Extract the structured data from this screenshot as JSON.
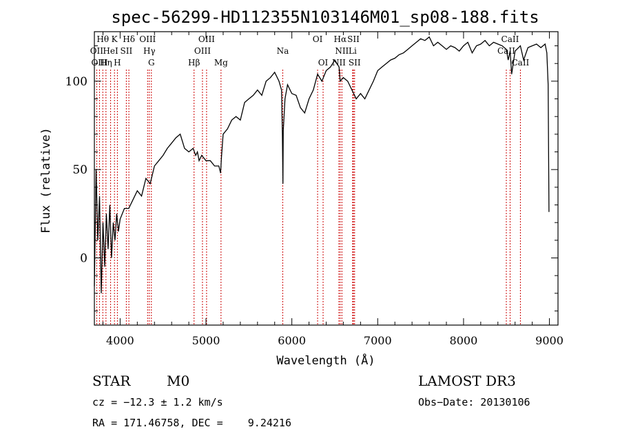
{
  "chart_data": {
    "type": "line",
    "title": "spec-56299-HD112355N103146M01_sp08-188.fits",
    "xlabel": "Wavelength (Å)",
    "ylabel": "Flux (relative)",
    "xlim": [
      3700,
      9100
    ],
    "ylim": [
      -38,
      128
    ],
    "xticks": [
      4000,
      5000,
      6000,
      7000,
      8000,
      9000
    ],
    "yticks": [
      0,
      50,
      100
    ],
    "grid": false,
    "series": [
      {
        "x": [
          3700,
          3720,
          3740,
          3760,
          3780,
          3800,
          3820,
          3840,
          3860,
          3880,
          3900,
          3920,
          3940,
          3960,
          3980,
          4000,
          4050,
          4100,
          4150,
          4200,
          4250,
          4300,
          4350,
          4400,
          4450,
          4500,
          4550,
          4600,
          4650,
          4700,
          4750,
          4800,
          4850,
          4880,
          4900,
          4920,
          4950,
          5000,
          5050,
          5100,
          5150,
          5170,
          5180,
          5200,
          5250,
          5300,
          5350,
          5400,
          5450,
          5500,
          5550,
          5600,
          5650,
          5700,
          5750,
          5800,
          5850,
          5880,
          5890,
          5896,
          5900,
          5920,
          5950,
          6000,
          6050,
          6100,
          6150,
          6200,
          6250,
          6300,
          6350,
          6400,
          6450,
          6500,
          6550,
          6563,
          6600,
          6650,
          6700,
          6750,
          6800,
          6850,
          6900,
          6950,
          7000,
          7050,
          7100,
          7150,
          7200,
          7250,
          7300,
          7350,
          7400,
          7450,
          7500,
          7550,
          7600,
          7650,
          7700,
          7750,
          7800,
          7850,
          7900,
          7950,
          8000,
          8050,
          8100,
          8150,
          8200,
          8250,
          8300,
          8350,
          8400,
          8450,
          8498,
          8520,
          8542,
          8560,
          8600,
          8662,
          8700,
          8750,
          8800,
          8850,
          8900,
          8950,
          8970,
          8985,
          8995
        ],
        "y": [
          -16,
          50,
          10,
          35,
          -20,
          20,
          -5,
          25,
          5,
          30,
          0,
          20,
          10,
          25,
          15,
          22,
          28,
          28,
          33,
          38,
          35,
          45,
          42,
          52,
          55,
          58,
          62,
          65,
          68,
          70,
          62,
          60,
          62,
          58,
          60,
          55,
          58,
          55,
          55,
          52,
          52,
          48,
          57,
          70,
          73,
          78,
          80,
          78,
          88,
          90,
          92,
          95,
          92,
          100,
          102,
          105,
          100,
          95,
          70,
          42,
          72,
          90,
          98,
          93,
          92,
          85,
          82,
          90,
          95,
          104,
          100,
          106,
          108,
          112,
          108,
          100,
          102,
          100,
          95,
          90,
          93,
          90,
          95,
          100,
          106,
          108,
          110,
          112,
          113,
          115,
          116,
          118,
          120,
          122,
          124,
          123,
          125,
          120,
          122,
          120,
          118,
          120,
          119,
          117,
          120,
          122,
          116,
          120,
          121,
          123,
          120,
          122,
          121,
          120,
          118,
          112,
          117,
          104,
          117,
          120,
          112,
          119,
          120,
          121,
          119,
          121,
          116,
          98,
          26
        ]
      }
    ],
    "lines": [
      {
        "name": "Hθ",
        "x": 3798
      },
      {
        "name": "OII",
        "x": 3727
      },
      {
        "name": "OIII",
        "x": 3760
      },
      {
        "name": "Hη",
        "x": 3835
      },
      {
        "name": "HeI",
        "x": 3889
      },
      {
        "name": "K",
        "x": 3934
      },
      {
        "name": "H",
        "x": 3968
      },
      {
        "name": "SII",
        "x": 4072
      },
      {
        "name": "Hδ",
        "x": 4102
      },
      {
        "name": "OIII",
        "x": 4320
      },
      {
        "name": "Hγ",
        "x": 4340
      },
      {
        "name": "G",
        "x": 4364
      },
      {
        "name": "Hβ",
        "x": 4861
      },
      {
        "name": "OIII",
        "x": 4959
      },
      {
        "name": "OIII",
        "x": 5007
      },
      {
        "name": "Mg",
        "x": 5175
      },
      {
        "name": "Na",
        "x": 5894
      },
      {
        "name": "OI",
        "x": 6300
      },
      {
        "name": "OI",
        "x": 6364
      },
      {
        "name": "Hα",
        "x": 6563
      },
      {
        "name": "NII",
        "x": 6548
      },
      {
        "name": "NII",
        "x": 6583
      },
      {
        "name": "SII",
        "x": 6717
      },
      {
        "name": "Li",
        "x": 6708
      },
      {
        "name": "SII",
        "x": 6731
      },
      {
        "name": "CaII",
        "x": 8498
      },
      {
        "name": "CaII",
        "x": 8542
      },
      {
        "name": "CaII",
        "x": 8662
      }
    ]
  },
  "info": {
    "class": "STAR",
    "subclass": "M0",
    "survey": "LAMOST DR3",
    "cz": "cz = −12.3 ± 1.2 km/s",
    "obs_date": "Obs−Date: 20130106",
    "radec": "RA = 171.46758, DEC =    9.24216"
  },
  "colors": {
    "axis": "#000000",
    "spectrum": "#000000",
    "line_marker": "#cc0000",
    "background": "#ffffff"
  }
}
